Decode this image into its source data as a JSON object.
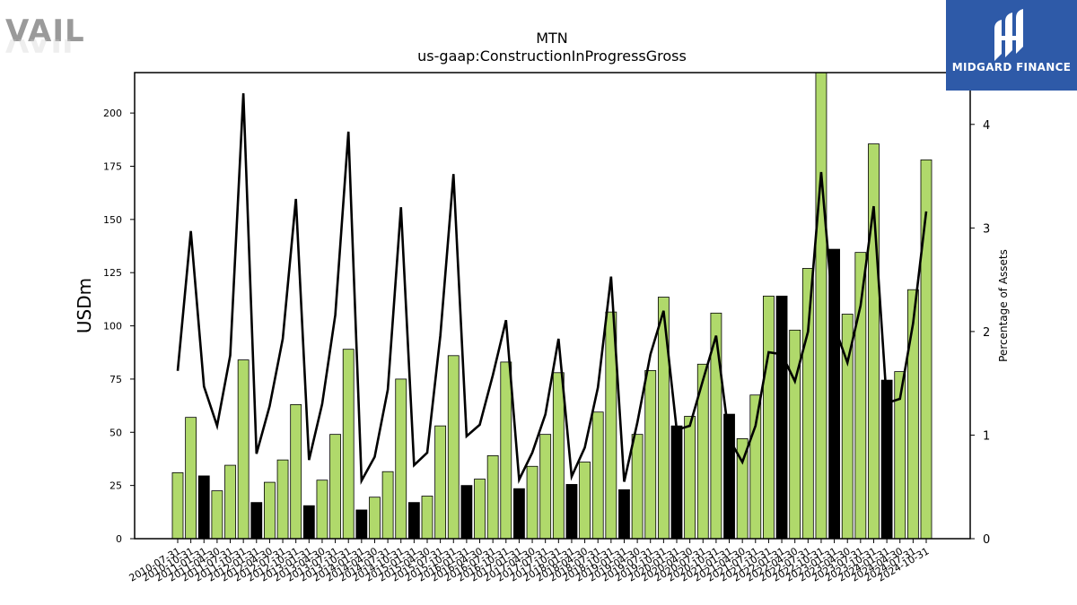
{
  "branding": {
    "left_logo_text": "VAIL",
    "right_logo_text": "MIDGARD FINANCE",
    "right_logo_color": "#2e5aa8"
  },
  "colors": {
    "bar_green": "#b0d96b",
    "bar_black": "#000000",
    "line": "#000000"
  },
  "chart_data": {
    "type": "bar",
    "title": "MTN",
    "subtitle": "us-gaap:ConstructionInProgressGross",
    "ylabel": "USDm",
    "y2label": "Percentage of Assets",
    "ylim": [
      0,
      219
    ],
    "y2lim": [
      0,
      4.5
    ],
    "yticks": [
      0,
      25,
      50,
      75,
      100,
      125,
      150,
      175,
      200
    ],
    "y2ticks": [
      0,
      1,
      2,
      3,
      4
    ],
    "grid": false,
    "categories": [
      "2010-07-31",
      "2010-10-31",
      "2011-01-31",
      "2011-04-30",
      "2011-07-31",
      "2011-10-31",
      "2012-01-31",
      "2012-04-30",
      "2012-07-31",
      "2012-10-31",
      "2013-01-31",
      "2013-04-30",
      "2013-07-31",
      "2013-10-31",
      "2014-01-31",
      "2014-04-30",
      "2014-07-31",
      "2014-10-31",
      "2015-01-31",
      "2015-04-30",
      "2015-07-31",
      "2015-10-31",
      "2016-01-31",
      "2016-04-30",
      "2016-07-31",
      "2016-10-31",
      "2017-01-31",
      "2017-04-30",
      "2017-07-31",
      "2017-10-31",
      "2018-01-31",
      "2018-04-30",
      "2018-07-31",
      "2018-10-31",
      "2019-01-31",
      "2019-04-30",
      "2019-07-31",
      "2019-10-31",
      "2020-01-31",
      "2020-04-30",
      "2020-07-31",
      "2020-10-31",
      "2021-01-31",
      "2021-04-30",
      "2021-07-31",
      "2021-10-31",
      "2022-01-31",
      "2022-04-30",
      "2022-07-31",
      "2022-10-31",
      "2023-01-31",
      "2023-04-30",
      "2023-07-31",
      "2023-10-31",
      "2024-01-31",
      "2024-04-30",
      "2024-07-31",
      "2024-10-31"
    ],
    "values": [
      31,
      57,
      29.5,
      22.5,
      34.5,
      84,
      17,
      26.5,
      37,
      63,
      15.5,
      27.5,
      49,
      89,
      13.5,
      19.5,
      31.5,
      75,
      17,
      20,
      53,
      86,
      25,
      28,
      39,
      83,
      23.5,
      34,
      49,
      78,
      25.5,
      36,
      59.5,
      106.5,
      23,
      49,
      79,
      113.5,
      53,
      57.5,
      82,
      106,
      58.5,
      47,
      67.5,
      114,
      114,
      98,
      127,
      220,
      136,
      105.5,
      134.5,
      185.5,
      74.5,
      78.5,
      117,
      178
    ],
    "bar_is_dark": [
      false,
      false,
      true,
      false,
      false,
      false,
      true,
      false,
      false,
      false,
      true,
      false,
      false,
      false,
      true,
      false,
      false,
      false,
      true,
      false,
      false,
      false,
      true,
      false,
      false,
      false,
      true,
      false,
      false,
      false,
      true,
      false,
      false,
      false,
      true,
      false,
      false,
      false,
      true,
      false,
      false,
      false,
      true,
      false,
      false,
      false,
      true,
      false,
      false,
      false,
      true,
      false,
      false,
      false,
      true,
      false,
      false,
      false
    ],
    "series": [
      {
        "axis": "right",
        "values": [
          1.62,
          2.97,
          1.47,
          1.09,
          1.77,
          4.3,
          0.82,
          1.28,
          1.93,
          3.28,
          0.76,
          1.3,
          2.16,
          3.93,
          0.56,
          0.79,
          1.44,
          3.2,
          0.71,
          0.83,
          1.96,
          3.52,
          0.99,
          1.1,
          1.58,
          2.11,
          0.57,
          0.83,
          1.2,
          1.93,
          0.6,
          0.88,
          1.46,
          2.53,
          0.55,
          1.12,
          1.78,
          2.2,
          1.05,
          1.09,
          1.53,
          1.96,
          0.96,
          0.74,
          1.09,
          1.8,
          1.78,
          1.52,
          2.0,
          3.54,
          2.05,
          1.7,
          2.25,
          3.21,
          1.31,
          1.35,
          2.08,
          3.16
        ]
      }
    ]
  }
}
